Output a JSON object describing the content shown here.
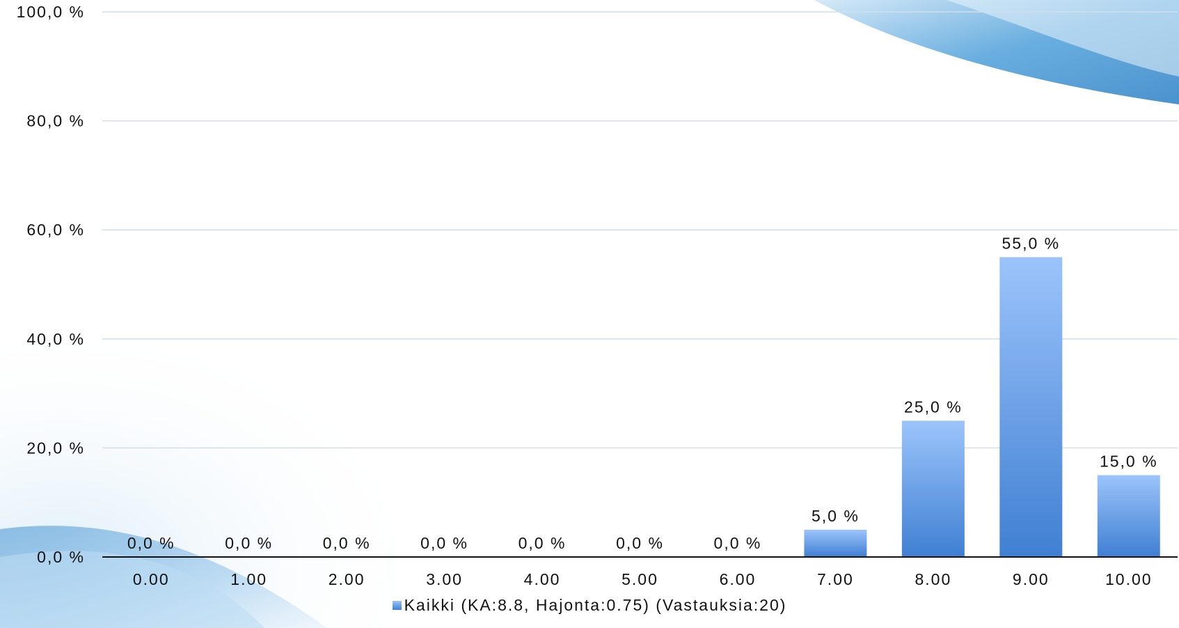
{
  "chart_data": {
    "type": "bar",
    "categories": [
      "0.00",
      "1.00",
      "2.00",
      "3.00",
      "4.00",
      "5.00",
      "6.00",
      "7.00",
      "8.00",
      "9.00",
      "10.00"
    ],
    "series": [
      {
        "name": "Kaikki (KA:8.8, Hajonta:0.75) (Vastauksia:20)",
        "values": [
          0,
          0,
          0,
          0,
          0,
          0,
          0,
          5,
          25,
          55,
          15
        ]
      }
    ],
    "data_labels": [
      "0,0 %",
      "0,0 %",
      "0,0 %",
      "0,0 %",
      "0,0 %",
      "0,0 %",
      "0,0 %",
      "5,0 %",
      "25,0 %",
      "55,0 %",
      "15,0 %"
    ],
    "yticks": [
      "0,0 %",
      "20,0 %",
      "40,0 %",
      "60,0 %",
      "80,0 %",
      "100,0 %"
    ],
    "ylim": [
      0,
      100
    ],
    "grid": true,
    "legend_position": "bottom-center",
    "bar_color_top": "#9cc4fb",
    "bar_color_bottom": "#3f7fd2"
  }
}
